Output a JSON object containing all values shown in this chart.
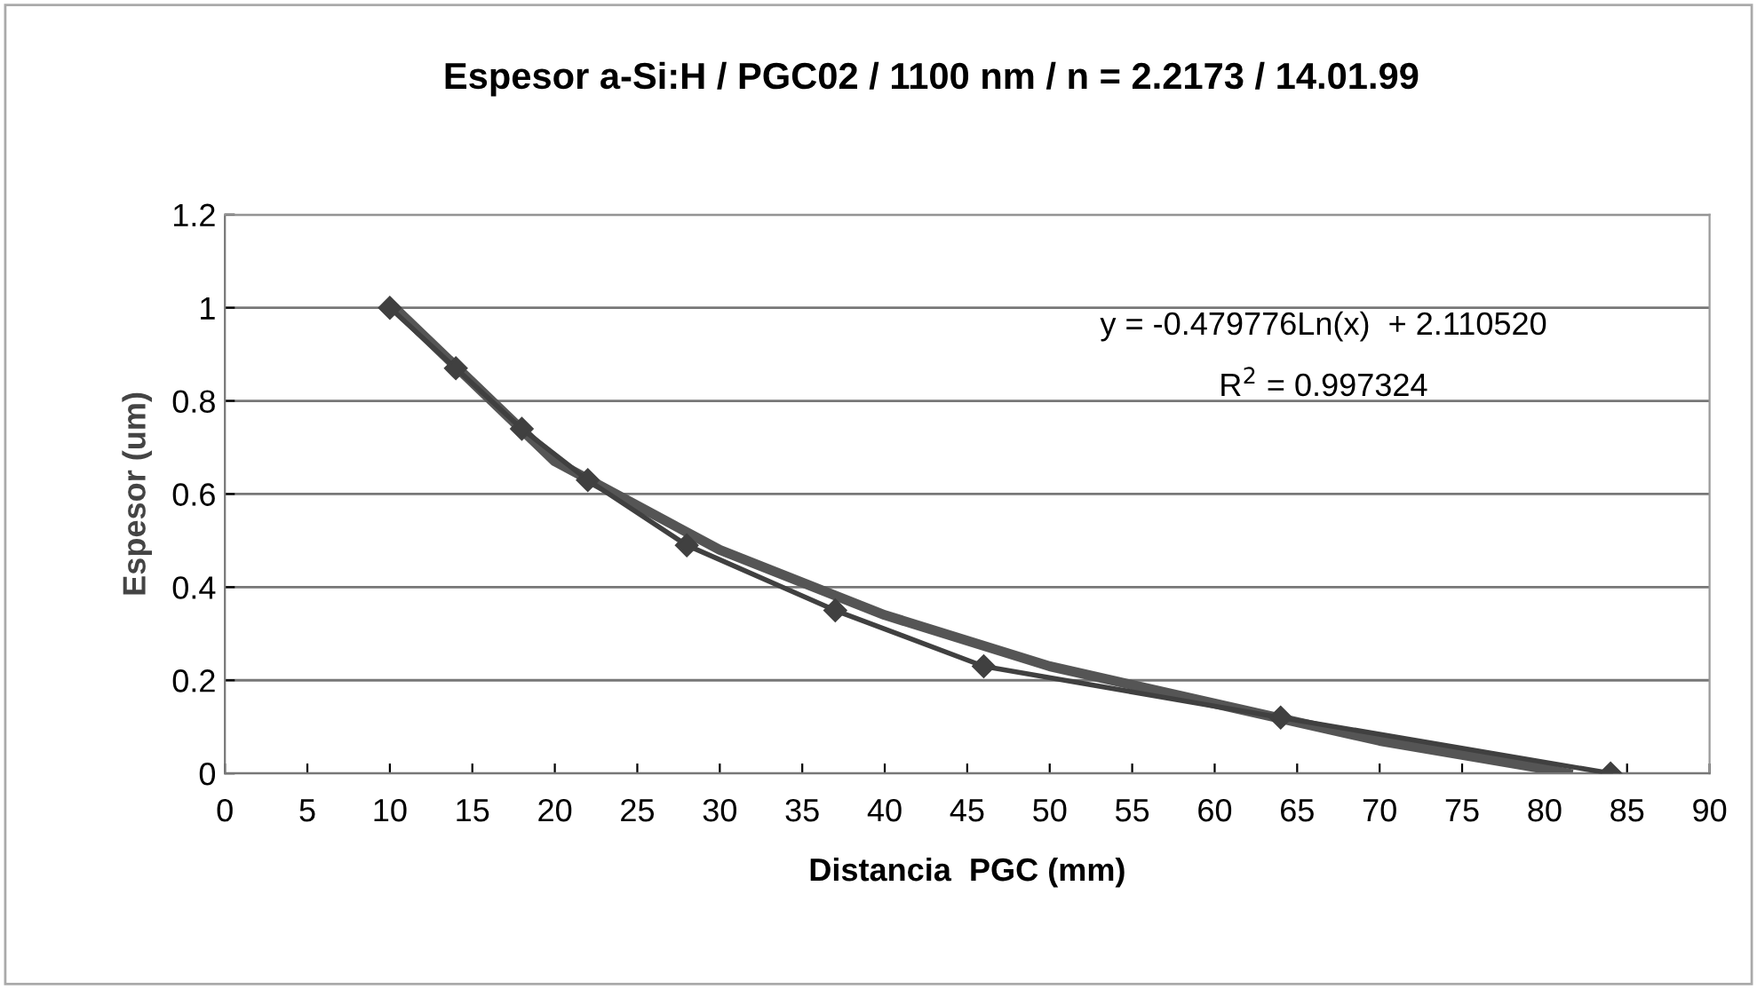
{
  "chart_data": {
    "type": "line",
    "title": "Espesor a-Si:H / PGC02 / 1100 nm / n = 2.2173 / 14.01.99",
    "xlabel": "Distancia  PGC (mm)",
    "ylabel": "Espesor (um)",
    "xlim": [
      0,
      90
    ],
    "xticks": [
      0,
      5,
      10,
      15,
      20,
      25,
      30,
      35,
      40,
      45,
      50,
      55,
      60,
      65,
      70,
      75,
      80,
      85,
      90
    ],
    "ylim": [
      0,
      1.2
    ],
    "yticks": [
      0,
      {
        "value": 0.2,
        "label": "0.2"
      },
      {
        "value": 0.4,
        "label": "0.4"
      },
      {
        "value": 0.6,
        "label": "0.6"
      },
      {
        "value": 0.8,
        "label": "0.8"
      },
      1,
      {
        "value": 1.2,
        "label": "1.2"
      }
    ],
    "grid": "y",
    "series": [
      {
        "color": "#404040",
        "marker": "diamond",
        "x": [
          10,
          14,
          18,
          22,
          28,
          37,
          46,
          64,
          84
        ],
        "values": [
          1.0,
          0.87,
          0.74,
          0.63,
          0.49,
          0.35,
          0.23,
          0.12,
          0.0
        ]
      },
      {
        "type": "line",
        "color": "#555555",
        "marker": "none",
        "x": [
          10,
          20,
          30,
          40,
          50,
          60,
          70,
          80,
          81.4
        ],
        "values": [
          1.01,
          0.67,
          0.48,
          0.34,
          0.23,
          0.15,
          0.07,
          0.01,
          0.0
        ]
      }
    ],
    "annotations": [
      "y = -0.479776Ln(x)  + 2.110520",
      "R$^{2}$ = 0.997324"
    ]
  }
}
